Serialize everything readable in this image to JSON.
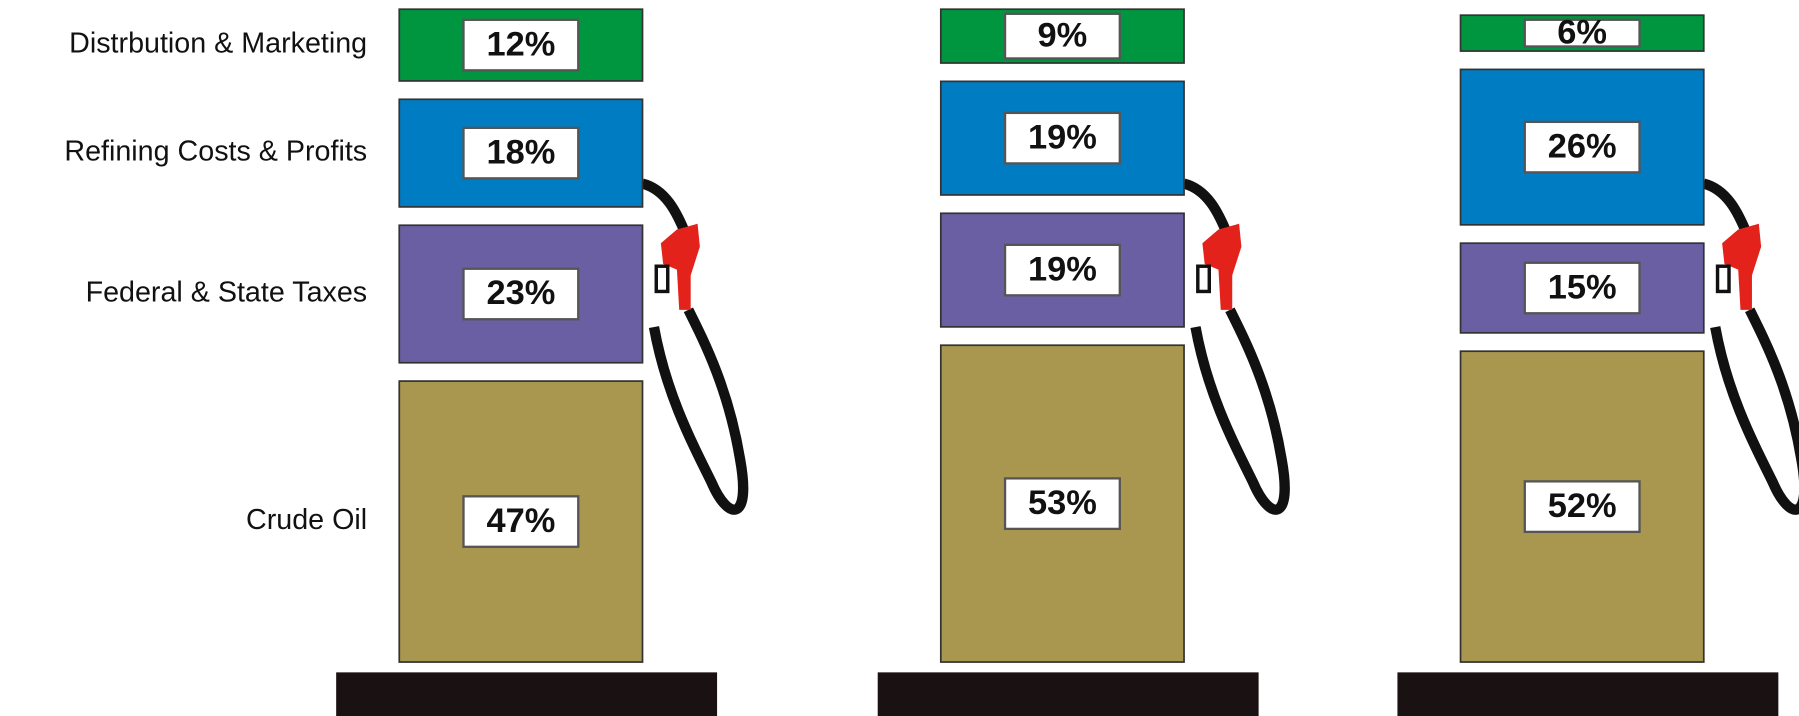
{
  "chart_data": {
    "type": "bar",
    "stacked": true,
    "categories": [
      null,
      null,
      null
    ],
    "series": [
      {
        "name": "Distrbution & Marketing",
        "color": "#009640",
        "values": [
          12,
          9,
          6
        ],
        "value_labels": [
          "12%",
          "9%",
          "6%"
        ]
      },
      {
        "name": "Refining Costs & Profits",
        "color": "#007cc3",
        "values": [
          18,
          19,
          26
        ],
        "value_labels": [
          "18%",
          "19%",
          "26%"
        ]
      },
      {
        "name": "Federal & State Taxes",
        "color": "#6a5fa3",
        "values": [
          23,
          19,
          15
        ],
        "value_labels": [
          "23%",
          "19%",
          "15%"
        ]
      },
      {
        "name": "Crude Oil",
        "color": "#a9964f",
        "values": [
          47,
          53,
          52
        ],
        "value_labels": [
          "47%",
          "53%",
          "52%"
        ]
      }
    ]
  }
}
